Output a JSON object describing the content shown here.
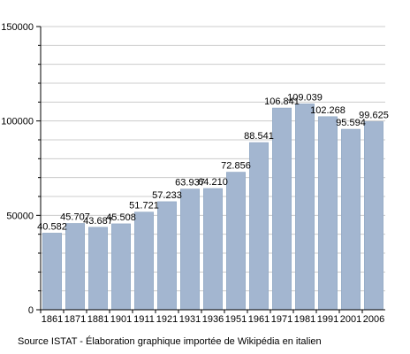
{
  "chart_data": {
    "type": "bar",
    "title": "",
    "xlabel": "",
    "ylabel": "",
    "categories": [
      "1861",
      "1871",
      "1881",
      "1901",
      "1911",
      "1921",
      "1931",
      "1936",
      "1951",
      "1961",
      "1971",
      "1981",
      "1991",
      "2001",
      "2006"
    ],
    "values": [
      40582,
      45707,
      43687,
      45508,
      51721,
      57233,
      63937,
      64210,
      72856,
      88541,
      106841,
      109039,
      102268,
      95594,
      99625
    ],
    "data_labels": [
      "40.582",
      "45.707",
      "43.687",
      "45.508",
      "51.721",
      "57.233",
      "63.937",
      "64.210",
      "72.856",
      "88.541",
      "106.841",
      "109.039",
      "102.268",
      "95.594",
      "99.625"
    ],
    "ylim": [
      0,
      150000
    ],
    "yticks": [
      "0",
      "50000",
      "100000",
      "150000"
    ],
    "ytick_values": [
      0,
      50000,
      100000,
      150000
    ],
    "grid": true,
    "bar_color": "#a3b6d0",
    "bar_edge_color": "#8ea5c2",
    "grid_color": "#cccccc"
  },
  "source_text": "Source ISTAT - Élaboration graphique importée de Wikipédia en italien"
}
